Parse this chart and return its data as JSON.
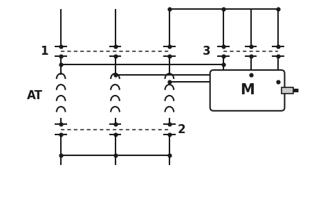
{
  "bg_color": "#ffffff",
  "line_color": "#1a1a1a",
  "dot_color": "#1a1a1a",
  "dashed_color": "#555555",
  "label_1": "1",
  "label_2": "2",
  "label_3": "3",
  "label_AT": "AT",
  "label_M": "M",
  "figsize": [
    4.8,
    3.0
  ],
  "dpi": 100
}
